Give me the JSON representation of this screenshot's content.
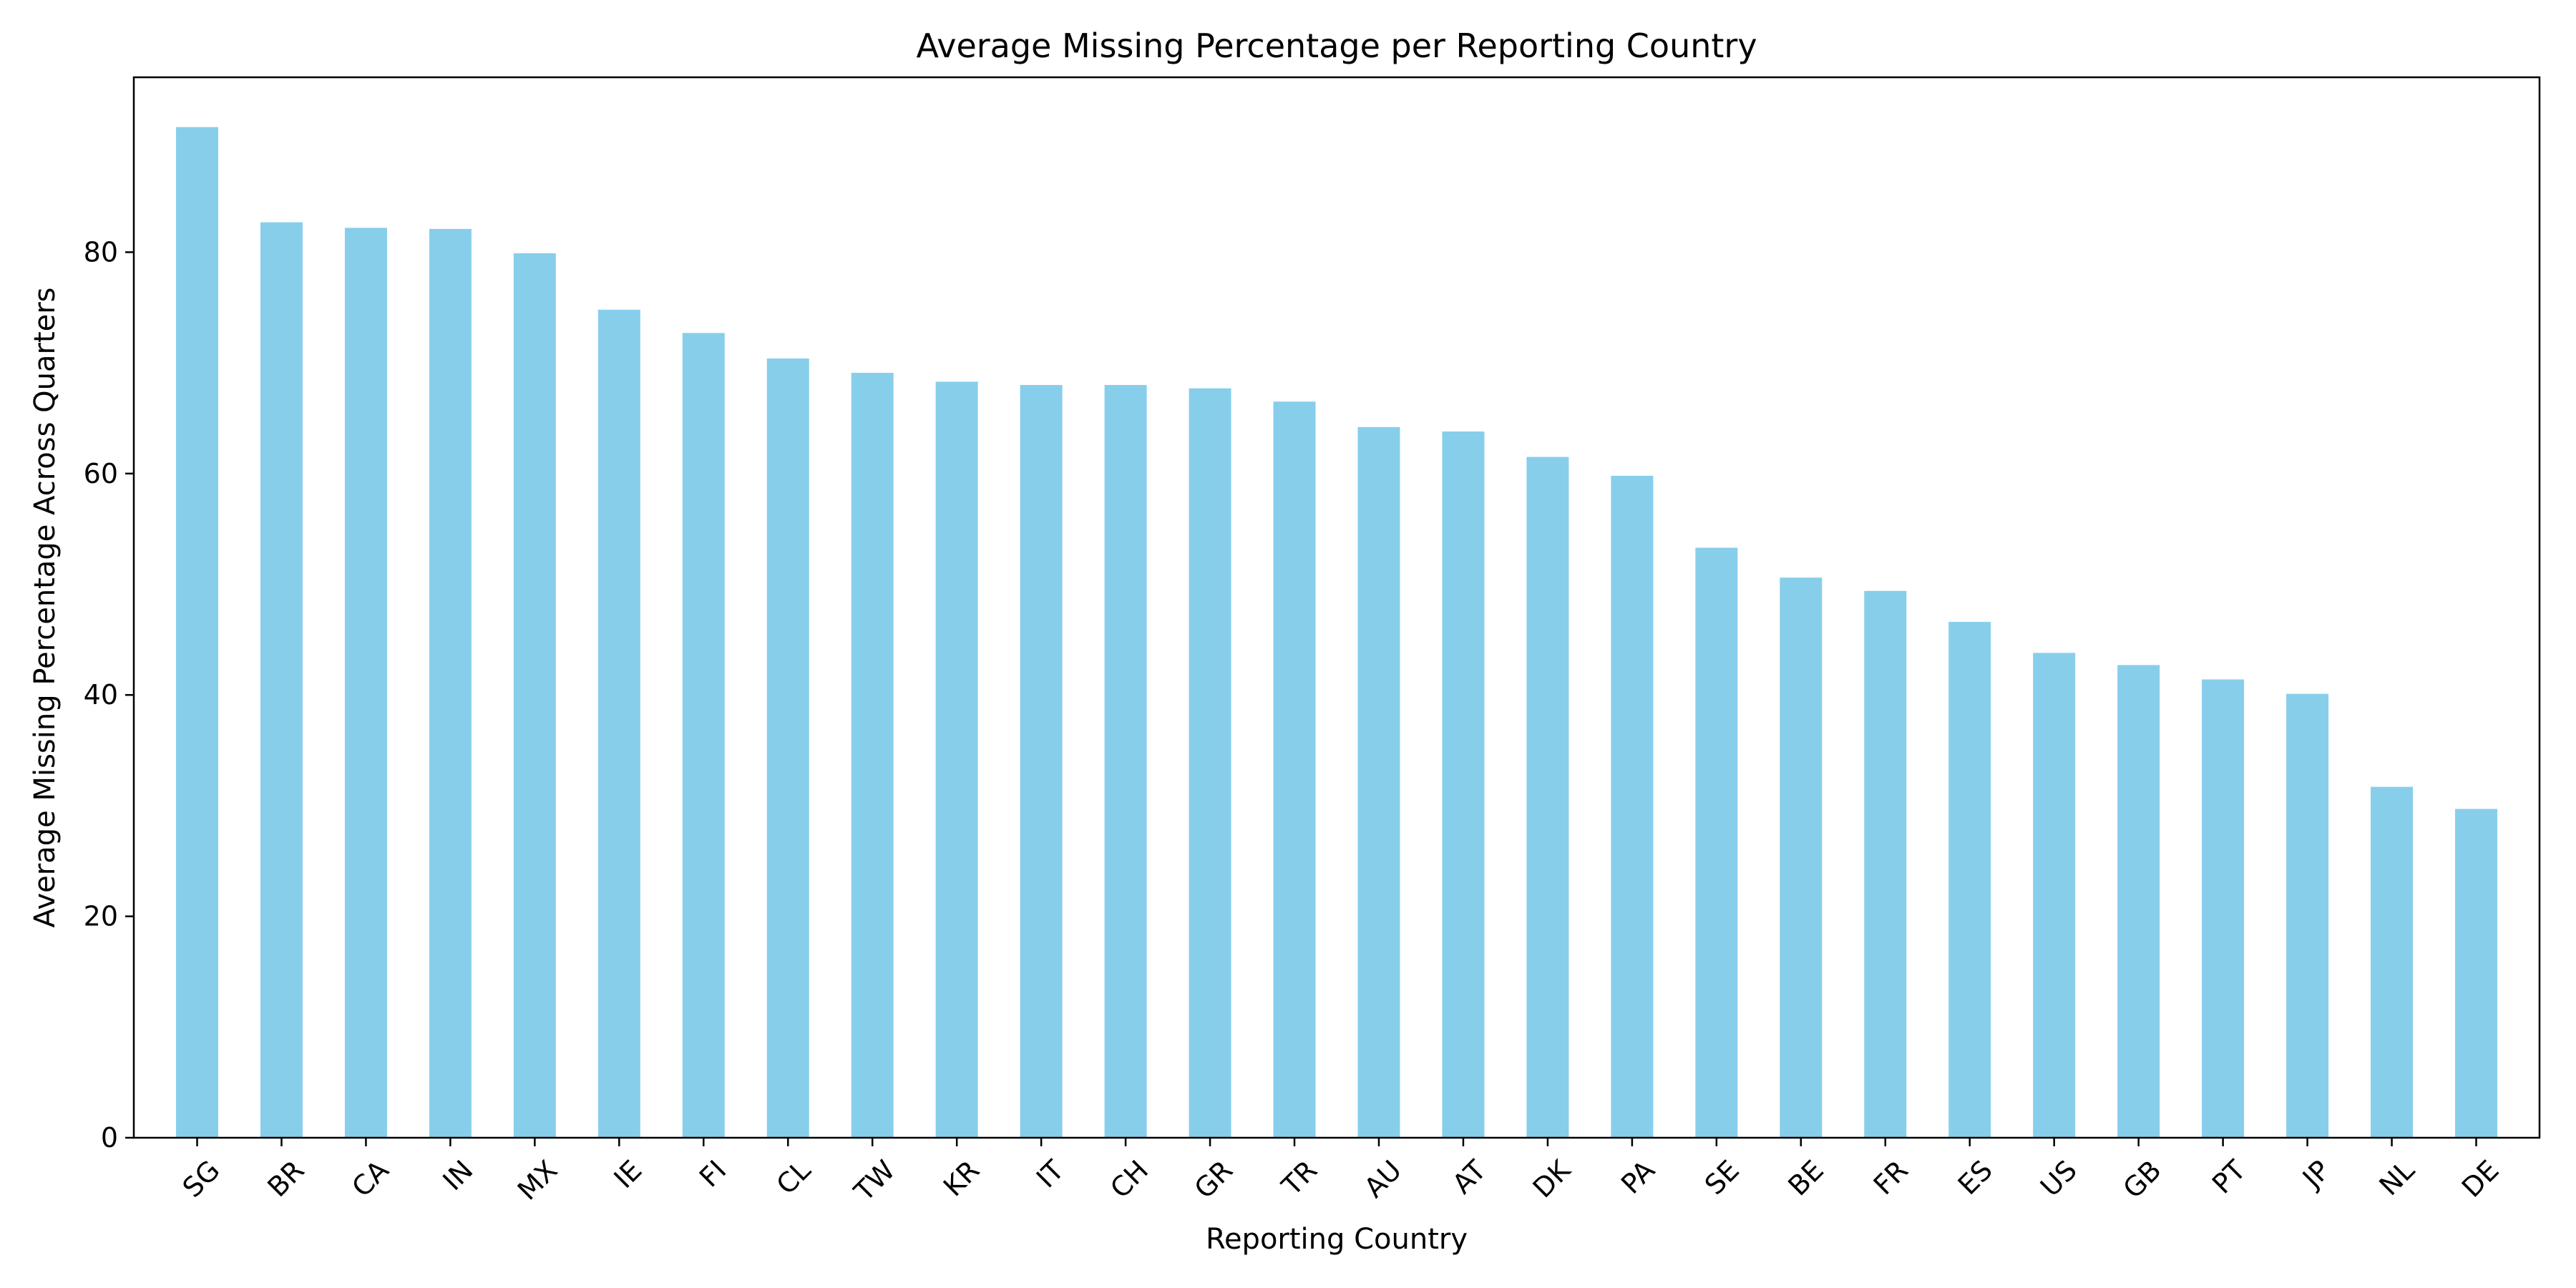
{
  "chart_data": {
    "type": "bar",
    "title": "Average Missing Percentage per Reporting Country",
    "xlabel": "Reporting Country",
    "ylabel": "Average Missing Percentage Across Quarters",
    "categories": [
      "SG",
      "BR",
      "CA",
      "IN",
      "MX",
      "IE",
      "FI",
      "CL",
      "TW",
      "KR",
      "IT",
      "CH",
      "GR",
      "TR",
      "AU",
      "AT",
      "DK",
      "PA",
      "SE",
      "BE",
      "FR",
      "ES",
      "US",
      "GB",
      "PT",
      "JP",
      "NL",
      "DE"
    ],
    "values": [
      91.3,
      82.7,
      82.2,
      82.1,
      79.9,
      74.8,
      72.7,
      70.4,
      69.1,
      68.3,
      68.0,
      68.0,
      67.7,
      66.5,
      64.2,
      63.8,
      61.5,
      59.8,
      53.3,
      50.6,
      49.4,
      46.6,
      43.8,
      42.7,
      41.4,
      40.1,
      31.7,
      29.7
    ],
    "ylim": [
      0,
      95.8
    ],
    "yticks": [
      0,
      20,
      40,
      60,
      80
    ],
    "bar_color": "#87CEEB",
    "grid": false,
    "legend": "none"
  }
}
